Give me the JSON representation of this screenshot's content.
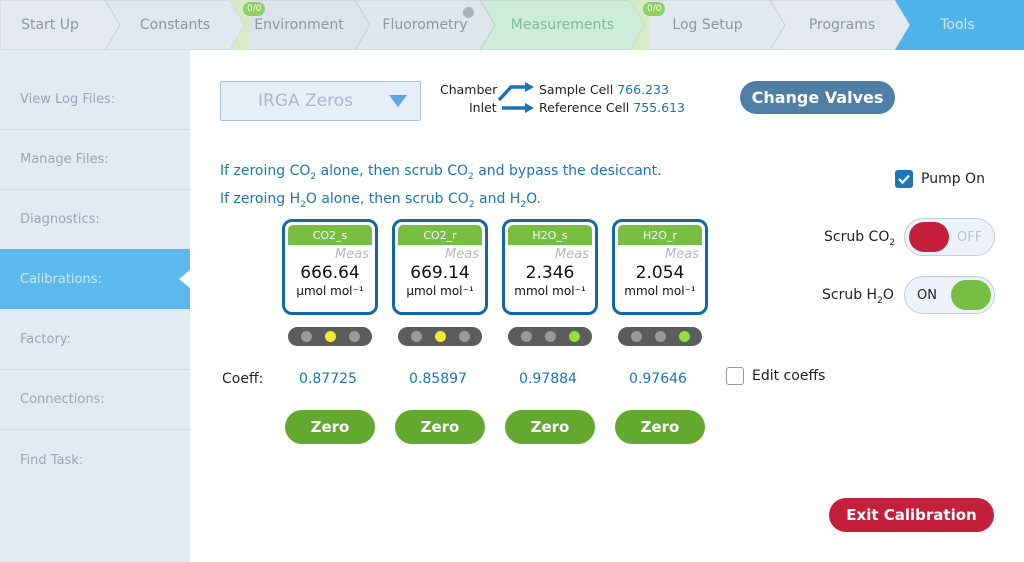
{
  "tabs": [
    {
      "label": "Start Up",
      "state": "done"
    },
    {
      "label": "Constants",
      "state": "done"
    },
    {
      "label": "Environment",
      "state": "done",
      "badge": "0/0"
    },
    {
      "label": "Fluorometry",
      "state": "done"
    },
    {
      "label": "Measurements",
      "state": "highlight"
    },
    {
      "label": "Log Setup",
      "state": "done",
      "badge": "0/0"
    },
    {
      "label": "Programs",
      "state": "done"
    },
    {
      "label": "Tools",
      "state": "active"
    }
  ],
  "sidebar": {
    "items": [
      {
        "label": "View Log Files:"
      },
      {
        "label": "Manage Files:"
      },
      {
        "label": "Diagnostics:"
      },
      {
        "label": "Calibrations:",
        "active": true
      },
      {
        "label": "Factory:"
      },
      {
        "label": "Connections:"
      },
      {
        "label": "Find Task:"
      }
    ]
  },
  "mode_select": {
    "value": "IRGA Zeros"
  },
  "valves": {
    "chamber_label": "Chamber",
    "inlet_label": "Inlet",
    "sample_label": "Sample Cell",
    "sample_value": "766.233",
    "reference_label": "Reference Cell",
    "reference_value": "755.613",
    "change_button": "Change Valves"
  },
  "instructions": {
    "line1_a": "If zeroing CO",
    "line1_sub1": "2",
    "line1_b": " alone, then scrub CO",
    "line1_sub2": "2",
    "line1_c": " and bypass the desiccant.",
    "line2_a": "If zeroing H",
    "line2_sub1": "2",
    "line2_b": "O alone, then scrub CO",
    "line2_sub2": "2",
    "line2_c": " and H",
    "line2_sub3": "2",
    "line2_d": "O."
  },
  "pump": {
    "label": "Pump On",
    "checked": true
  },
  "scrub_co2": {
    "label_a": "Scrub CO",
    "label_sub": "2",
    "state": "OFF"
  },
  "scrub_h2o": {
    "label_a": "Scrub H",
    "label_sub": "2",
    "label_b": "O",
    "state": "ON"
  },
  "sensors": [
    {
      "name": "CO2_s",
      "meas": "Meas",
      "value": "666.64",
      "unit": "µmol mol⁻¹",
      "leds": [
        "off",
        "yellow",
        "off"
      ],
      "coeff": "0.87725",
      "zero": "Zero"
    },
    {
      "name": "CO2_r",
      "meas": "Meas",
      "value": "669.14",
      "unit": "µmol mol⁻¹",
      "leds": [
        "off",
        "yellow",
        "off"
      ],
      "coeff": "0.85897",
      "zero": "Zero"
    },
    {
      "name": "H2O_s",
      "meas": "Meas",
      "value": "2.346",
      "unit": "mmol mol⁻¹",
      "leds": [
        "off",
        "off",
        "green"
      ],
      "coeff": "0.97884",
      "zero": "Zero"
    },
    {
      "name": "H2O_r",
      "meas": "Meas",
      "value": "2.054",
      "unit": "mmol mol⁻¹",
      "leds": [
        "off",
        "off",
        "green"
      ],
      "coeff": "0.97646",
      "zero": "Zero"
    }
  ],
  "coeff_label": "Coeff:",
  "edit_coeffs": {
    "label": "Edit coeffs",
    "checked": false
  },
  "exit_button": "Exit Calibration",
  "colors": {
    "accent": "#5bb9ec",
    "zero": "#63a82f",
    "exit": "#c41f3b",
    "valves": "#4f7ea6"
  }
}
